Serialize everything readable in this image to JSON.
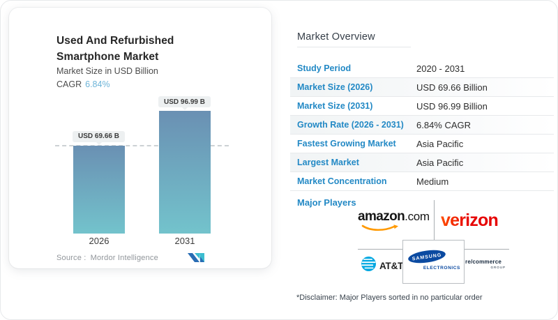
{
  "card": {
    "title": "Used And Refurbished Smartphone Market",
    "subtitle": "Market Size in USD Billion",
    "cagr_label": "CAGR",
    "cagr_value": "6.84%",
    "source_label": "Source :",
    "source_name": "Mordor Intelligence"
  },
  "chart_data": {
    "type": "bar",
    "categories": [
      "2026",
      "2031"
    ],
    "values": [
      69.66,
      96.99
    ],
    "bar_labels": [
      "USD 69.66 B",
      "USD 96.99 B"
    ],
    "title": "Used And Refurbished Smartphone Market",
    "ylabel": "Market Size in USD Billion",
    "ylim": [
      0,
      100
    ],
    "reference_line": {
      "style": "dashed",
      "value": 69.66
    },
    "grid": false,
    "legend": false,
    "bar_gradient_top": "#6a90b3",
    "bar_gradient_bottom": "#73c3cc"
  },
  "overview": {
    "title": "Market Overview",
    "rows": [
      {
        "label": "Study Period",
        "value": "2020 - 2031"
      },
      {
        "label": "Market Size (2026)",
        "value": "USD 69.66 Billion"
      },
      {
        "label": "Market Size (2031)",
        "value": "USD 96.99 Billion"
      },
      {
        "label": "Growth Rate (2026 - 2031)",
        "value": "6.84% CAGR"
      },
      {
        "label": "Fastest Growing Market",
        "value": "Asia Pacific"
      },
      {
        "label": "Largest Market",
        "value": "Asia Pacific"
      },
      {
        "label": "Market Concentration",
        "value": "Medium"
      }
    ],
    "major_players_label": "Major Players",
    "disclaimer": "*Disclaimer: Major Players sorted in no particular order",
    "players": {
      "amazon_word": "amazon",
      "amazon_suffix": ".com",
      "verizon_word": "verizon",
      "att_word": "AT&T",
      "samsung_word": "SAMSUNG",
      "samsung_sub": "ELECTRONICS",
      "recommerce_word": "re/commerce",
      "recommerce_sub": "GROUP"
    }
  },
  "colors": {
    "label_blue": "#2389c5",
    "cagr_blue": "#6db4d8",
    "bar_top": "#6a90b3",
    "bar_bottom": "#73c3cc",
    "amazon_orange": "#ff9900",
    "verizon_red": "#e60000",
    "att_blue": "#00a7e1",
    "samsung_blue": "#0b4aa1"
  }
}
